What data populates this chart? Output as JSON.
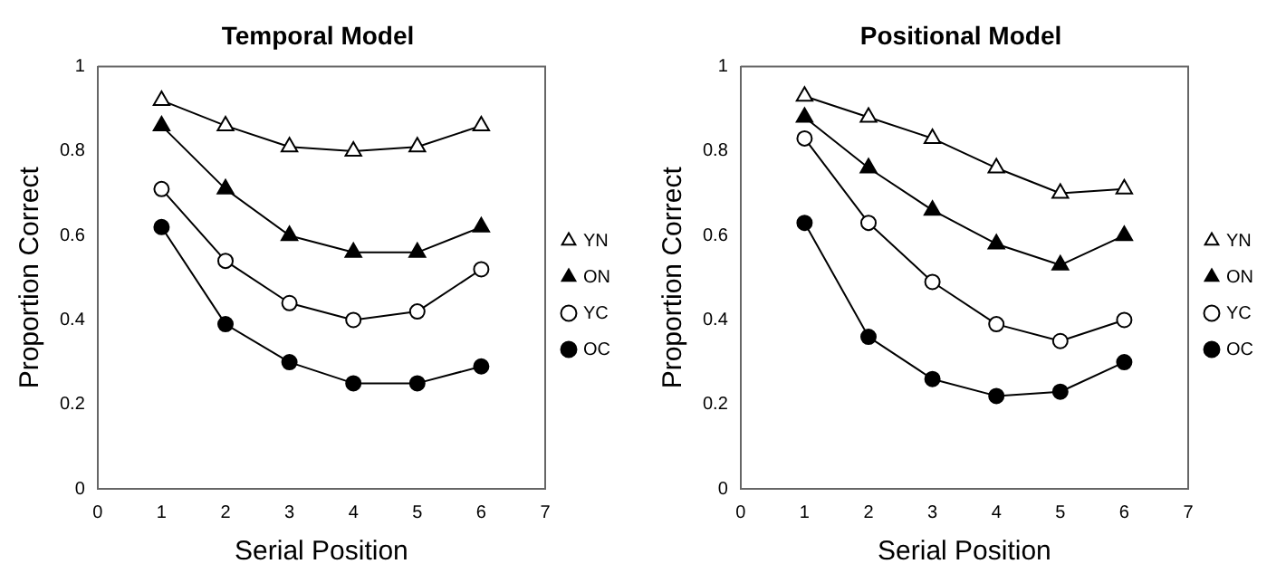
{
  "chart_data": [
    {
      "type": "line",
      "title": "Temporal Model",
      "xlabel": "Serial Position",
      "ylabel": "Proportion Correct",
      "x": [
        1,
        2,
        3,
        4,
        5,
        6
      ],
      "xlim": [
        0,
        7
      ],
      "xticks": [
        0,
        1,
        2,
        3,
        4,
        5,
        6,
        7
      ],
      "ylim": [
        0,
        1
      ],
      "yticks": [
        0,
        0.2,
        0.4,
        0.6,
        0.8,
        1
      ],
      "grid": false,
      "legend": "right",
      "line_style": "solid",
      "series": [
        {
          "name": "YN",
          "color": "#ffffff",
          "marker": "triangle",
          "values": [
            0.92,
            0.86,
            0.81,
            0.8,
            0.81,
            0.86
          ]
        },
        {
          "name": "ON",
          "color": "#000000",
          "marker": "triangle",
          "values": [
            0.86,
            0.71,
            0.6,
            0.56,
            0.56,
            0.62
          ]
        },
        {
          "name": "YC",
          "color": "#ffffff",
          "marker": "circle",
          "values": [
            0.71,
            0.54,
            0.44,
            0.4,
            0.42,
            0.52
          ]
        },
        {
          "name": "OC",
          "color": "#000000",
          "marker": "circle",
          "values": [
            0.62,
            0.39,
            0.3,
            0.25,
            0.25,
            0.29
          ]
        }
      ]
    },
    {
      "type": "line",
      "title": "Positional Model",
      "xlabel": "Serial Position",
      "ylabel": "Proportion Correct",
      "x": [
        1,
        2,
        3,
        4,
        5,
        6
      ],
      "xlim": [
        0,
        7
      ],
      "xticks": [
        0,
        1,
        2,
        3,
        4,
        5,
        6,
        7
      ],
      "ylim": [
        0,
        1
      ],
      "yticks": [
        0,
        0.2,
        0.4,
        0.6,
        0.8,
        1
      ],
      "grid": false,
      "legend": "right",
      "line_style": "solid",
      "series": [
        {
          "name": "YN",
          "color": "#ffffff",
          "marker": "triangle",
          "values": [
            0.93,
            0.88,
            0.83,
            0.76,
            0.7,
            0.71
          ]
        },
        {
          "name": "ON",
          "color": "#000000",
          "marker": "triangle",
          "values": [
            0.88,
            0.76,
            0.66,
            0.58,
            0.53,
            0.6
          ]
        },
        {
          "name": "YC",
          "color": "#ffffff",
          "marker": "circle",
          "values": [
            0.83,
            0.63,
            0.49,
            0.39,
            0.35,
            0.4
          ]
        },
        {
          "name": "OC",
          "color": "#000000",
          "marker": "circle",
          "values": [
            0.63,
            0.36,
            0.26,
            0.22,
            0.23,
            0.3
          ]
        }
      ]
    }
  ]
}
